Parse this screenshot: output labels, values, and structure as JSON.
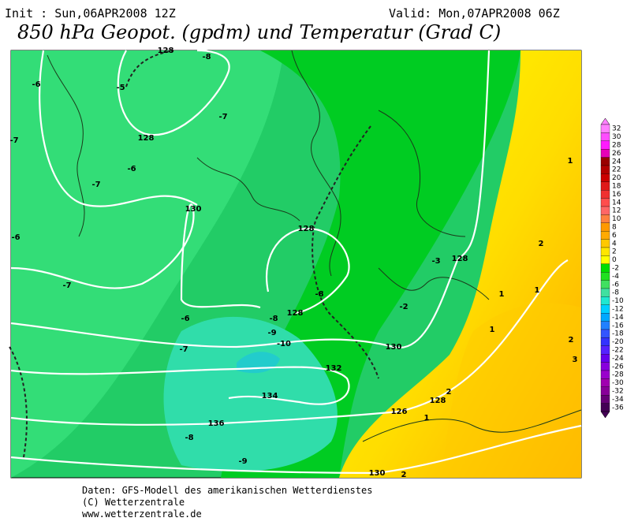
{
  "header": {
    "init": "Init : Sun,06APR2008 12Z",
    "valid": "Valid: Mon,07APR2008 06Z",
    "title": "850 hPa Geopot. (gpdm) und Temperatur (Grad C)"
  },
  "map": {
    "contour_labels": [
      "128",
      "-8",
      "-6",
      "-5",
      "-7",
      "128",
      "-7",
      "-6",
      "-7",
      "130",
      "128",
      "-6",
      "-3",
      "128",
      "-7",
      "-8",
      "128",
      "-2",
      "-6",
      "-8",
      "-9",
      "-10",
      "-7",
      "130",
      "132",
      "134",
      "126",
      "136",
      "-8",
      "-9",
      "130",
      "1",
      "2",
      "1",
      "1",
      "2",
      "1",
      "2",
      "128",
      "1",
      "3",
      "2"
    ]
  },
  "colorbar": {
    "labels": [
      32,
      30,
      28,
      26,
      24,
      22,
      20,
      18,
      16,
      14,
      12,
      10,
      8,
      6,
      4,
      2,
      0,
      -2,
      -4,
      -6,
      -8,
      -10,
      -12,
      -14,
      -16,
      -18,
      -20,
      -22,
      -24,
      -26,
      -28,
      -30,
      -32,
      -34,
      -36
    ],
    "colors": [
      "#ff80ff",
      "#ff4dff",
      "#ff1aff",
      "#e600b8",
      "#990000",
      "#b30000",
      "#cc0000",
      "#e01a1a",
      "#f03030",
      "#ff4d4d",
      "#ff6666",
      "#ff8040",
      "#ff9900",
      "#ffaa00",
      "#ffc800",
      "#ffe600",
      "#ffff00",
      "#00dd00",
      "#20e020",
      "#40e060",
      "#40e0a0",
      "#20e8d0",
      "#00d0ff",
      "#00a8ff",
      "#2080ff",
      "#3355ff",
      "#3333ff",
      "#5522ff",
      "#6600ee",
      "#8800dd",
      "#9900cc",
      "#a000b0",
      "#880099",
      "#660077",
      "#440055"
    ]
  },
  "footer": {
    "line1": "Daten: GFS-Modell des amerikanischen Wetterdienstes",
    "line2": "(C) Wetterzentrale",
    "line3": "www.wetterzentrale.de"
  }
}
